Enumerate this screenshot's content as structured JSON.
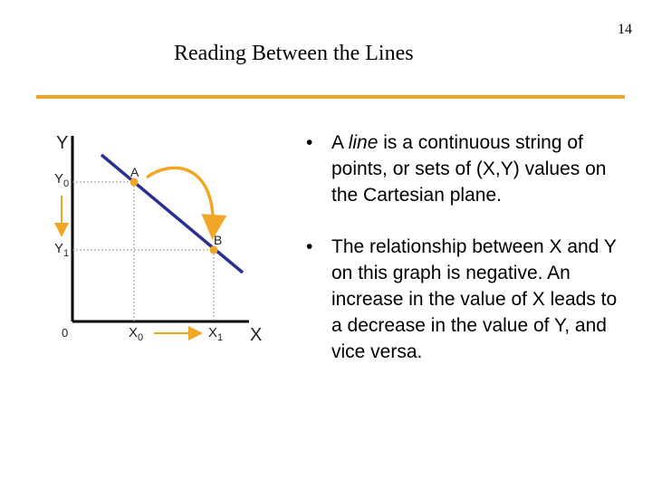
{
  "page_number": "14",
  "title": "Reading Between the Lines",
  "colors": {
    "accent_rule": "#f2a626",
    "line": "#2b2f8f",
    "point": "#f2a626",
    "arrow": "#f2a626",
    "axis": "#000000",
    "guide": "#999999"
  },
  "diagram": {
    "y_axis_label": "Y",
    "x_axis_label": "X",
    "origin_label": "0",
    "y0_label": "Y",
    "y0_sub": "0",
    "y1_label": "Y",
    "y1_sub": "1",
    "x0_label": "X",
    "x0_sub": "0",
    "x1_label": "X",
    "x1_sub": "1",
    "point_a": "A",
    "point_b": "B"
  },
  "bullets": [
    {
      "marker": "•",
      "pre": "A ",
      "emphasis": "line",
      "post": " is a continuous string of points, or sets of (X,Y) values on the Cartesian plane."
    },
    {
      "marker": "•",
      "text": "The relationship between X and Y on this graph is negative.  An increase in the value of X leads to a decrease in the value of Y, and vice versa."
    }
  ]
}
